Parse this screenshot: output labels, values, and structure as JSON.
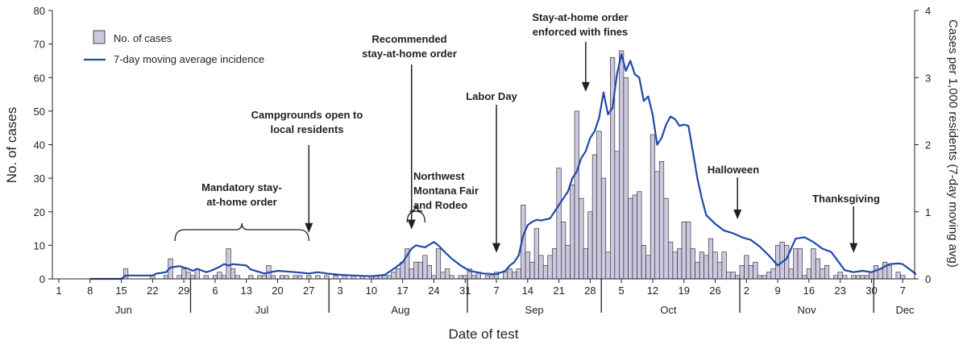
{
  "chart_data": {
    "type": "bar",
    "xlabel": "Date of test",
    "ylabel": "No. of cases",
    "ylabel_right": "Cases per 1,000 residents (7-day moving avg)",
    "ylim": [
      0,
      80
    ],
    "ylim_right": [
      0,
      4
    ],
    "yticks": [
      "0",
      "10",
      "20",
      "30",
      "40",
      "50",
      "60",
      "70",
      "80"
    ],
    "yticks_right": [
      "0",
      "1",
      "2",
      "3",
      "4"
    ],
    "x_range": [
      "Jun 1",
      "Dec 10"
    ],
    "legend": {
      "position": "top-left",
      "bar_label": "No. of cases",
      "line_label": "7-day moving average incidence"
    },
    "month_labels": [
      {
        "label": "Jun",
        "day": 14.5
      },
      {
        "label": "Jul",
        "day": 45.5
      },
      {
        "label": "Aug",
        "day": 76.5
      },
      {
        "label": "Sep",
        "day": 106.5
      },
      {
        "label": "Oct",
        "day": 136.5
      },
      {
        "label": "Nov",
        "day": 167.5
      },
      {
        "label": "Dec",
        "day": 189.5
      }
    ],
    "month_boundaries": [
      29.5,
      60.5,
      91.5,
      121.5,
      152.5,
      182.5
    ],
    "day_ticks": [
      {
        "label": "1",
        "day": 0
      },
      {
        "label": "8",
        "day": 7
      },
      {
        "label": "15",
        "day": 14
      },
      {
        "label": "22",
        "day": 21
      },
      {
        "label": "29",
        "day": 28
      },
      {
        "label": "6",
        "day": 35
      },
      {
        "label": "13",
        "day": 42
      },
      {
        "label": "20",
        "day": 49
      },
      {
        "label": "27",
        "day": 56
      },
      {
        "label": "3",
        "day": 63
      },
      {
        "label": "10",
        "day": 70
      },
      {
        "label": "17",
        "day": 77
      },
      {
        "label": "24",
        "day": 84
      },
      {
        "label": "31",
        "day": 91
      },
      {
        "label": "7",
        "day": 98
      },
      {
        "label": "14",
        "day": 105
      },
      {
        "label": "21",
        "day": 112
      },
      {
        "label": "28",
        "day": 119
      },
      {
        "label": "5",
        "day": 126
      },
      {
        "label": "12",
        "day": 133
      },
      {
        "label": "19",
        "day": 140
      },
      {
        "label": "26",
        "day": 147
      },
      {
        "label": "2",
        "day": 154
      },
      {
        "label": "9",
        "day": 161
      },
      {
        "label": "16",
        "day": 168
      },
      {
        "label": "23",
        "day": 175
      },
      {
        "label": "30",
        "day": 182
      },
      {
        "label": "7",
        "day": 189
      }
    ],
    "cases": [
      [
        15,
        3
      ],
      [
        21,
        1
      ],
      [
        24,
        1
      ],
      [
        25,
        6
      ],
      [
        27,
        1
      ],
      [
        28,
        3
      ],
      [
        29,
        2
      ],
      [
        30,
        1
      ],
      [
        31,
        3
      ],
      [
        33,
        1
      ],
      [
        35,
        1
      ],
      [
        36,
        2
      ],
      [
        37,
        1
      ],
      [
        38,
        9
      ],
      [
        39,
        3
      ],
      [
        40,
        1
      ],
      [
        43,
        1
      ],
      [
        45,
        1
      ],
      [
        46,
        1
      ],
      [
        47,
        4
      ],
      [
        48,
        1
      ],
      [
        50,
        1
      ],
      [
        51,
        1
      ],
      [
        53,
        1
      ],
      [
        54,
        1
      ],
      [
        56,
        1
      ],
      [
        58,
        1
      ],
      [
        60,
        1
      ],
      [
        62,
        1
      ],
      [
        64,
        1
      ],
      [
        66,
        1
      ],
      [
        68,
        1
      ],
      [
        70,
        1
      ],
      [
        71,
        1
      ],
      [
        72,
        1
      ],
      [
        73,
        1
      ],
      [
        74,
        1
      ],
      [
        75,
        2
      ],
      [
        76,
        3
      ],
      [
        77,
        5
      ],
      [
        78,
        9
      ],
      [
        79,
        3
      ],
      [
        80,
        5
      ],
      [
        81,
        5
      ],
      [
        82,
        7
      ],
      [
        83,
        4
      ],
      [
        84,
        1
      ],
      [
        85,
        9
      ],
      [
        86,
        2
      ],
      [
        87,
        3
      ],
      [
        88,
        1
      ],
      [
        90,
        1
      ],
      [
        91,
        1
      ],
      [
        92,
        3
      ],
      [
        93,
        1
      ],
      [
        94,
        2
      ],
      [
        96,
        1
      ],
      [
        97,
        1
      ],
      [
        98,
        2
      ],
      [
        100,
        2
      ],
      [
        101,
        3
      ],
      [
        102,
        2
      ],
      [
        103,
        3
      ],
      [
        104,
        22
      ],
      [
        105,
        8
      ],
      [
        106,
        5
      ],
      [
        107,
        15
      ],
      [
        108,
        7
      ],
      [
        109,
        4
      ],
      [
        110,
        7
      ],
      [
        111,
        9
      ],
      [
        112,
        33
      ],
      [
        113,
        17
      ],
      [
        114,
        10
      ],
      [
        115,
        28
      ],
      [
        116,
        50
      ],
      [
        117,
        24
      ],
      [
        118,
        9
      ],
      [
        119,
        20
      ],
      [
        120,
        37
      ],
      [
        121,
        44
      ],
      [
        122,
        30
      ],
      [
        123,
        8
      ],
      [
        124,
        66
      ],
      [
        125,
        38
      ],
      [
        126,
        68
      ],
      [
        127,
        60
      ],
      [
        128,
        24
      ],
      [
        129,
        25
      ],
      [
        130,
        26
      ],
      [
        131,
        10
      ],
      [
        132,
        7
      ],
      [
        133,
        43
      ],
      [
        134,
        32
      ],
      [
        135,
        35
      ],
      [
        136,
        24
      ],
      [
        137,
        11
      ],
      [
        138,
        8
      ],
      [
        139,
        9
      ],
      [
        140,
        17
      ],
      [
        141,
        17
      ],
      [
        142,
        9
      ],
      [
        143,
        5
      ],
      [
        144,
        8
      ],
      [
        145,
        7
      ],
      [
        146,
        12
      ],
      [
        147,
        8
      ],
      [
        148,
        5
      ],
      [
        149,
        8
      ],
      [
        150,
        2
      ],
      [
        151,
        2
      ],
      [
        152,
        1
      ],
      [
        153,
        4
      ],
      [
        154,
        7
      ],
      [
        155,
        4
      ],
      [
        156,
        5
      ],
      [
        157,
        1
      ],
      [
        158,
        1
      ],
      [
        159,
        2
      ],
      [
        160,
        3
      ],
      [
        161,
        10
      ],
      [
        162,
        11
      ],
      [
        163,
        10
      ],
      [
        164,
        3
      ],
      [
        165,
        9
      ],
      [
        166,
        9
      ],
      [
        167,
        1
      ],
      [
        168,
        3
      ],
      [
        169,
        9
      ],
      [
        170,
        6
      ],
      [
        171,
        3
      ],
      [
        172,
        4
      ],
      [
        174,
        1
      ],
      [
        175,
        2
      ],
      [
        176,
        1
      ],
      [
        178,
        1
      ],
      [
        179,
        1
      ],
      [
        180,
        1
      ],
      [
        181,
        1
      ],
      [
        182,
        2
      ],
      [
        183,
        4
      ],
      [
        184,
        3
      ],
      [
        185,
        5
      ],
      [
        186,
        4
      ],
      [
        188,
        2
      ],
      [
        189,
        1
      ]
    ],
    "incidence": [
      [
        7,
        0
      ],
      [
        14,
        0
      ],
      [
        15,
        0.05
      ],
      [
        21,
        0.05
      ],
      [
        22,
        0.08
      ],
      [
        24,
        0.1
      ],
      [
        25,
        0.17
      ],
      [
        26,
        0.18
      ],
      [
        27,
        0.19
      ],
      [
        28,
        0.17
      ],
      [
        29,
        0.15
      ],
      [
        30,
        0.12
      ],
      [
        31,
        0.15
      ],
      [
        33,
        0.1
      ],
      [
        34,
        0.12
      ],
      [
        36,
        0.18
      ],
      [
        37,
        0.22
      ],
      [
        38,
        0.2
      ],
      [
        39,
        0.22
      ],
      [
        42,
        0.2
      ],
      [
        43,
        0.14
      ],
      [
        46,
        0.08
      ],
      [
        49,
        0.12
      ],
      [
        53,
        0.1
      ],
      [
        56,
        0.08
      ],
      [
        58,
        0.1
      ],
      [
        60,
        0.08
      ],
      [
        63,
        0.06
      ],
      [
        66,
        0.05
      ],
      [
        70,
        0.04
      ],
      [
        73,
        0.06
      ],
      [
        75,
        0.15
      ],
      [
        77,
        0.25
      ],
      [
        79,
        0.45
      ],
      [
        80,
        0.5
      ],
      [
        82,
        0.47
      ],
      [
        84,
        0.55
      ],
      [
        85,
        0.5
      ],
      [
        86,
        0.43
      ],
      [
        88,
        0.3
      ],
      [
        90,
        0.2
      ],
      [
        92,
        0.12
      ],
      [
        95,
        0.08
      ],
      [
        98,
        0.07
      ],
      [
        100,
        0.12
      ],
      [
        101,
        0.2
      ],
      [
        102,
        0.25
      ],
      [
        103,
        0.35
      ],
      [
        104,
        0.65
      ],
      [
        105,
        0.8
      ],
      [
        106,
        0.85
      ],
      [
        107,
        0.88
      ],
      [
        108,
        0.87
      ],
      [
        110,
        0.9
      ],
      [
        112,
        1.1
      ],
      [
        113,
        1.2
      ],
      [
        114,
        1.3
      ],
      [
        115,
        1.5
      ],
      [
        116,
        1.6
      ],
      [
        117,
        1.8
      ],
      [
        118,
        1.9
      ],
      [
        119,
        2.1
      ],
      [
        120,
        2.2
      ],
      [
        121,
        2.4
      ],
      [
        122,
        2.78
      ],
      [
        123,
        2.45
      ],
      [
        124,
        2.55
      ],
      [
        125,
        3.05
      ],
      [
        126,
        3.35
      ],
      [
        127,
        3.1
      ],
      [
        128,
        3.25
      ],
      [
        129,
        3.05
      ],
      [
        130,
        3.0
      ],
      [
        131,
        2.65
      ],
      [
        132,
        2.72
      ],
      [
        133,
        2.45
      ],
      [
        134,
        2.0
      ],
      [
        135,
        2.1
      ],
      [
        136,
        2.3
      ],
      [
        137,
        2.42
      ],
      [
        138,
        2.38
      ],
      [
        139,
        2.28
      ],
      [
        140,
        2.3
      ],
      [
        141,
        2.28
      ],
      [
        142,
        1.9
      ],
      [
        143,
        1.5
      ],
      [
        144,
        1.2
      ],
      [
        145,
        0.95
      ],
      [
        147,
        0.82
      ],
      [
        149,
        0.72
      ],
      [
        151,
        0.68
      ],
      [
        153,
        0.62
      ],
      [
        155,
        0.58
      ],
      [
        157,
        0.48
      ],
      [
        159,
        0.35
      ],
      [
        161,
        0.2
      ],
      [
        163,
        0.3
      ],
      [
        165,
        0.6
      ],
      [
        167,
        0.62
      ],
      [
        169,
        0.55
      ],
      [
        171,
        0.45
      ],
      [
        173,
        0.4
      ],
      [
        175,
        0.22
      ],
      [
        176,
        0.13
      ],
      [
        178,
        0.1
      ],
      [
        180,
        0.12
      ],
      [
        182,
        0.1
      ],
      [
        184,
        0.15
      ],
      [
        186,
        0.22
      ],
      [
        188,
        0.23
      ],
      [
        189,
        0.22
      ],
      [
        191,
        0.12
      ],
      [
        192,
        0.07
      ]
    ],
    "annotations": [
      {
        "lines": [
          "Mandatory stay-",
          "at-home order"
        ],
        "type": "brace",
        "from": 26,
        "to": 56
      },
      {
        "lines": [
          "Campgrounds open to",
          "local residents"
        ],
        "type": "arrow",
        "day": 56,
        "tip": 8
      },
      {
        "lines": [
          "Recommended",
          "stay-at-home order"
        ],
        "type": "arrow",
        "day": 79,
        "tip": 9
      },
      {
        "lines": [
          "Northwest",
          "Montana Fair",
          "and Rodeo"
        ],
        "type": "brace",
        "from": 78,
        "to": 82
      },
      {
        "lines": [
          "Labor Day"
        ],
        "type": "arrow",
        "day": 98,
        "tip": 2
      },
      {
        "lines": [
          "Stay-at-home order",
          "enforced with fines"
        ],
        "type": "arrow",
        "day": 118,
        "tip": 50
      },
      {
        "lines": [
          "Halloween"
        ],
        "type": "arrow",
        "day": 152,
        "tip": 12
      },
      {
        "lines": [
          "Thanksgiving"
        ],
        "type": "arrow",
        "day": 178,
        "tip": 2
      }
    ]
  }
}
